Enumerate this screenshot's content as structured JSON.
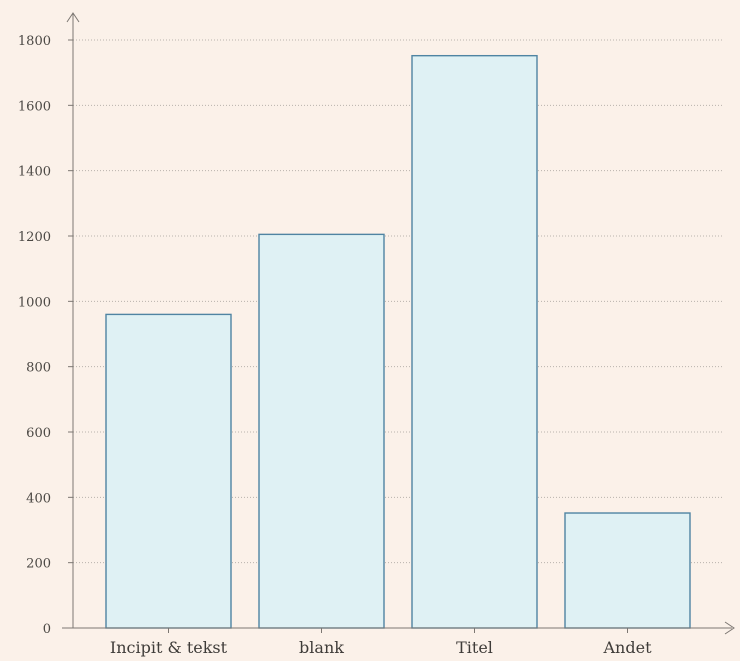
{
  "chart_data": {
    "type": "bar",
    "categories": [
      "Incipit & tekst",
      "blank",
      "Titel",
      "Andet"
    ],
    "values": [
      960,
      1205,
      1752,
      352
    ],
    "title": "",
    "xlabel": "",
    "ylabel": "",
    "ylim": [
      0,
      1800
    ],
    "yticks": [
      0,
      200,
      400,
      600,
      800,
      1000,
      1200,
      1400,
      1600,
      1800
    ],
    "grid": true,
    "legend": "none",
    "colors": {
      "bar_fill": "#dff1f4",
      "bar_stroke": "#4f84a2",
      "background": "#fbf1e9"
    }
  }
}
